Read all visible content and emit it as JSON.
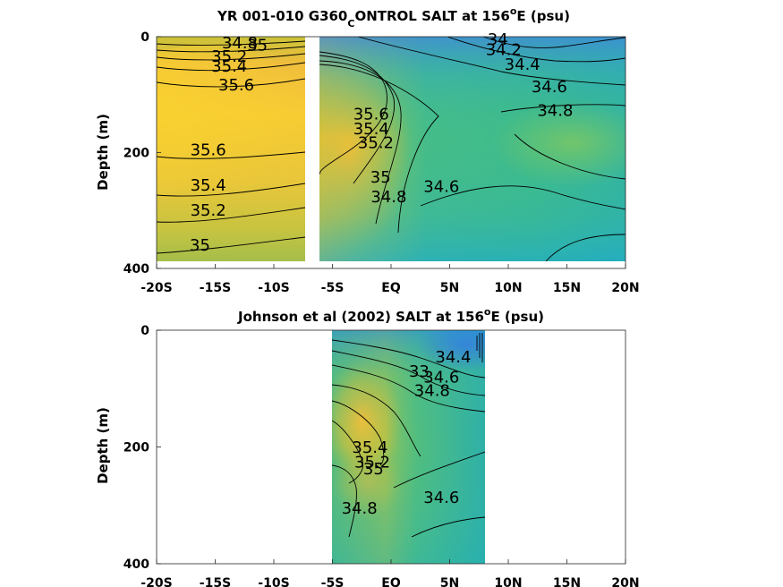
{
  "chart_data": [
    {
      "type": "heatmap",
      "title_main": "YR 001-010 G360",
      "title_sub": "C",
      "title_rest": "ONTROL SALT at 156",
      "title_sup": "o",
      "title_end": "E (psu)",
      "ylabel": "Depth (m)",
      "xlabel": "",
      "xlim": [
        -20,
        20
      ],
      "ylim": [
        400,
        0
      ],
      "x_ticks": [
        -20,
        -15,
        -10,
        -5,
        0,
        5,
        10,
        15,
        20
      ],
      "x_tick_labels": [
        "-20S",
        "-15S",
        "-10S",
        "-5S",
        "EQ",
        "5N",
        "10N",
        "15N",
        "20N"
      ],
      "y_ticks": [
        0,
        200,
        400
      ],
      "y_tick_labels": [
        "0",
        "200",
        "400"
      ],
      "data_extent": [
        -20,
        20,
        0,
        385
      ],
      "no_data_band": [
        -7.5,
        -6.3
      ],
      "contour_labels": [
        {
          "text": "34.8",
          "x": -12.9,
          "y": 20
        },
        {
          "text": "35",
          "x": -11.4,
          "y": 24
        },
        {
          "text": "35.2",
          "x": -13.8,
          "y": 43
        },
        {
          "text": "35.4",
          "x": -13.8,
          "y": 60
        },
        {
          "text": "35.6",
          "x": -13.2,
          "y": 93
        },
        {
          "text": "35.6",
          "x": -15.6,
          "y": 205
        },
        {
          "text": "35.4",
          "x": -15.6,
          "y": 266
        },
        {
          "text": "35.2",
          "x": -15.6,
          "y": 309
        },
        {
          "text": "35",
          "x": -16.3,
          "y": 369
        },
        {
          "text": "35.6",
          "x": -1.7,
          "y": 143
        },
        {
          "text": "35.4",
          "x": -1.7,
          "y": 168
        },
        {
          "text": "35.2",
          "x": -1.3,
          "y": 192
        },
        {
          "text": "35",
          "x": -0.9,
          "y": 252
        },
        {
          "text": "34.8",
          "x": -0.2,
          "y": 286
        },
        {
          "text": "34.6",
          "x": 4.3,
          "y": 268
        },
        {
          "text": "34",
          "x": 9.1,
          "y": 14
        },
        {
          "text": "34.2",
          "x": 9.6,
          "y": 32
        },
        {
          "text": "34.4",
          "x": 11.2,
          "y": 57
        },
        {
          "text": "34.6",
          "x": 13.5,
          "y": 96
        },
        {
          "text": "34.8",
          "x": 14.0,
          "y": 137
        }
      ]
    },
    {
      "type": "heatmap",
      "title_main": "Johnson et al (2002) SALT at 156",
      "title_sup": "o",
      "title_end": "E (psu)",
      "ylabel": "Depth (m)",
      "xlabel": "",
      "xlim": [
        -20,
        20
      ],
      "ylim": [
        400,
        0
      ],
      "x_ticks": [
        -20,
        -15,
        -10,
        -5,
        0,
        5,
        10,
        15,
        20
      ],
      "x_tick_labels": [
        "-20S",
        "-15S",
        "-10S",
        "-5S",
        "EQ",
        "5N",
        "10N",
        "15N",
        "20N"
      ],
      "y_ticks": [
        0,
        200,
        400
      ],
      "y_tick_labels": [
        "0",
        "200",
        "400"
      ],
      "data_extent": [
        -5,
        8,
        0,
        400
      ],
      "contour_labels": [
        {
          "text": "34.4",
          "x": 5.3,
          "y": 55
        },
        {
          "text": "34.6",
          "x": 4.3,
          "y": 90
        },
        {
          "text": "34.8",
          "x": 3.5,
          "y": 113
        },
        {
          "text": "33",
          "x": 2.4,
          "y": 80
        },
        {
          "text": "35.4",
          "x": -1.8,
          "y": 210
        },
        {
          "text": "35.2",
          "x": -1.6,
          "y": 235
        },
        {
          "text": "35",
          "x": -1.5,
          "y": 247
        },
        {
          "text": "34.8",
          "x": -2.7,
          "y": 314
        },
        {
          "text": "34.6",
          "x": 4.3,
          "y": 296
        }
      ]
    }
  ]
}
